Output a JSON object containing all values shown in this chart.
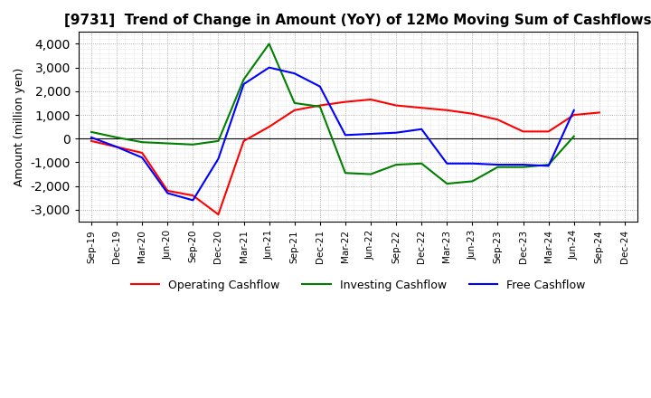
{
  "title": "[9731]  Trend of Change in Amount (YoY) of 12Mo Moving Sum of Cashflows",
  "ylabel": "Amount (million yen)",
  "x_labels": [
    "Sep-19",
    "Dec-19",
    "Mar-20",
    "Jun-20",
    "Sep-20",
    "Dec-20",
    "Mar-21",
    "Jun-21",
    "Sep-21",
    "Dec-21",
    "Mar-22",
    "Jun-22",
    "Sep-22",
    "Dec-22",
    "Mar-23",
    "Jun-23",
    "Sep-23",
    "Dec-23",
    "Mar-24",
    "Jun-24",
    "Sep-24",
    "Dec-24"
  ],
  "operating": [
    -100,
    -350,
    -600,
    -2200,
    -2400,
    -3200,
    -100,
    500,
    1200,
    1400,
    1550,
    1650,
    1400,
    1300,
    1200,
    1050,
    800,
    300,
    300,
    1000,
    1100,
    null
  ],
  "investing": [
    280,
    50,
    -150,
    -200,
    -250,
    -100,
    2500,
    4000,
    1500,
    1350,
    -1450,
    -1500,
    -1100,
    -1050,
    -1900,
    -1800,
    -1200,
    -1200,
    -1100,
    100,
    null,
    null
  ],
  "free": [
    50,
    -350,
    -800,
    -2300,
    -2600,
    -850,
    2300,
    3000,
    2750,
    2200,
    150,
    200,
    250,
    400,
    -1050,
    -1050,
    -1100,
    -1100,
    -1150,
    1200,
    null,
    null
  ],
  "operating_color": "#FF0000",
  "investing_color": "#008000",
  "free_color": "#0000FF",
  "ylim": [
    -3500,
    4500
  ],
  "yticks": [
    -3000,
    -2000,
    -1000,
    0,
    1000,
    2000,
    3000,
    4000
  ],
  "bg_color": "#FFFFFF",
  "grid_color": "#999999",
  "minor_grid_color": "#CCCCCC"
}
